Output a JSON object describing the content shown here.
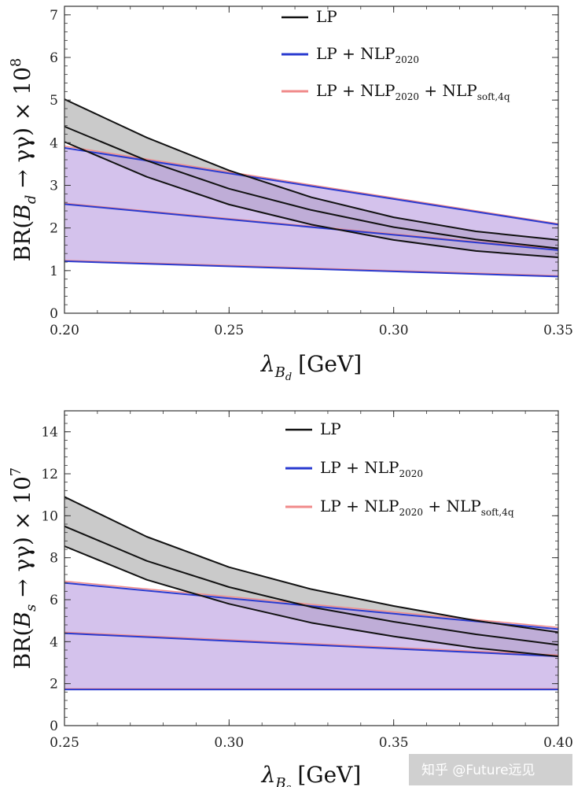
{
  "chart_data": [
    {
      "type": "area",
      "panel": "Bd",
      "x_range": [
        0.2,
        0.35
      ],
      "y_range": [
        0,
        7.2
      ],
      "x_ticks": [
        "0.20",
        "0.25",
        "0.30",
        "0.35"
      ],
      "x_tick_values": [
        0.2,
        0.25,
        0.3,
        0.35
      ],
      "y_ticks": [
        "0",
        "1",
        "2",
        "3",
        "4",
        "5",
        "6",
        "7"
      ],
      "y_tick_values": [
        0,
        1,
        2,
        3,
        4,
        5,
        6,
        7
      ],
      "xlabel": {
        "main": "λ",
        "sub": "B",
        "subsub": "d",
        "unit": "[GeV]"
      },
      "ylabel": {
        "prefix": "BR(",
        "B": "B",
        "sub": "d",
        "middle": " → γγ) × 10",
        "exp": "8"
      },
      "legend": [
        {
          "label": "LP",
          "sub": "",
          "label2": "",
          "sub2": "",
          "color": "#111111"
        },
        {
          "label": "LP + NLP",
          "sub": "2020",
          "label2": "",
          "sub2": "",
          "color": "#2a3bd0"
        },
        {
          "label": "LP + NLP",
          "sub": "2020",
          "label2": " + NLP",
          "sub2": "soft,4q",
          "color": "#f08a8a"
        }
      ],
      "series": [
        {
          "name": "LP",
          "color": "#111111",
          "fill": "#b8b8b8",
          "x": [
            0.2,
            0.225,
            0.25,
            0.275,
            0.3,
            0.325,
            0.35
          ],
          "upper": [
            5.02,
            4.12,
            3.35,
            2.72,
            2.25,
            1.92,
            1.72
          ],
          "central": [
            4.38,
            3.58,
            2.92,
            2.42,
            2.02,
            1.73,
            1.52
          ],
          "lower": [
            4.02,
            3.2,
            2.55,
            2.08,
            1.72,
            1.46,
            1.31
          ]
        },
        {
          "name": "LP + NLP2020",
          "color": "#2a3bd0",
          "fill": "#b79ae0",
          "x": [
            0.2,
            0.35
          ],
          "upper": [
            3.88,
            2.08
          ],
          "central": [
            2.56,
            1.48
          ],
          "lower": [
            1.22,
            0.86
          ]
        },
        {
          "name": "LP + NLP2020 + NLPsoft,4q",
          "color": "#f08a8a",
          "x": [
            0.2,
            0.35
          ],
          "upper": [
            3.92,
            2.1
          ],
          "central": [
            2.58,
            1.5
          ],
          "lower": [
            1.24,
            0.88
          ]
        }
      ]
    },
    {
      "type": "area",
      "panel": "Bs",
      "x_range": [
        0.25,
        0.4
      ],
      "y_range": [
        0,
        15
      ],
      "x_ticks": [
        "0.25",
        "0.30",
        "0.35",
        "0.40"
      ],
      "x_tick_values": [
        0.25,
        0.3,
        0.35,
        0.4
      ],
      "y_ticks": [
        "0",
        "2",
        "4",
        "6",
        "8",
        "10",
        "12",
        "14"
      ],
      "y_tick_values": [
        0,
        2,
        4,
        6,
        8,
        10,
        12,
        14
      ],
      "xlabel": {
        "main": "λ",
        "sub": "B",
        "subsub": "s",
        "unit": "[GeV]"
      },
      "ylabel": {
        "prefix": "BR(",
        "B": "B",
        "sub": "s",
        "middle": " → γγ) × 10",
        "exp": "7"
      },
      "legend": [
        {
          "label": "LP",
          "sub": "",
          "label2": "",
          "sub2": "",
          "color": "#111111"
        },
        {
          "label": "LP + NLP",
          "sub": "2020",
          "label2": "",
          "sub2": "",
          "color": "#2a3bd0"
        },
        {
          "label": "LP + NLP",
          "sub": "2020",
          "label2": " + NLP",
          "sub2": "soft,4q",
          "color": "#f08a8a"
        }
      ],
      "series": [
        {
          "name": "LP",
          "color": "#111111",
          "fill": "#b8b8b8",
          "x": [
            0.25,
            0.275,
            0.3,
            0.325,
            0.35,
            0.375,
            0.4
          ],
          "upper": [
            10.9,
            9.0,
            7.55,
            6.5,
            5.7,
            5.0,
            4.45
          ],
          "central": [
            9.5,
            7.85,
            6.6,
            5.65,
            4.95,
            4.35,
            3.85
          ],
          "lower": [
            8.55,
            6.95,
            5.8,
            4.9,
            4.25,
            3.7,
            3.3
          ]
        },
        {
          "name": "LP + NLP2020",
          "color": "#2a3bd0",
          "fill": "#b79ae0",
          "x": [
            0.25,
            0.4
          ],
          "upper": [
            6.8,
            4.6
          ],
          "central": [
            4.4,
            3.3
          ],
          "lower": [
            1.72,
            1.72
          ]
        },
        {
          "name": "LP + NLP2020 + NLPsoft,4q",
          "color": "#f08a8a",
          "x": [
            0.25,
            0.4
          ],
          "upper": [
            6.88,
            4.68
          ],
          "central": [
            4.45,
            3.36
          ],
          "lower": [
            1.76,
            1.76
          ]
        }
      ]
    }
  ],
  "watermark": "知乎 @Future远见"
}
